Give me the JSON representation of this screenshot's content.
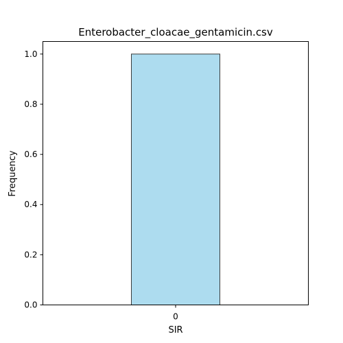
{
  "chart_data": {
    "type": "bar",
    "title": "Enterobacter_cloacae_gentamicin.csv",
    "xlabel": "SIR",
    "ylabel": "Frequency",
    "categories": [
      "0"
    ],
    "values": [
      1.0
    ],
    "xlim": [
      -0.75,
      0.75
    ],
    "ylim": [
      0,
      1.05
    ],
    "yticks": [
      0.0,
      0.2,
      0.4,
      0.6,
      0.8,
      1.0
    ],
    "ytick_labels": [
      "0.0",
      "0.2",
      "0.4",
      "0.6",
      "0.8",
      "1.0"
    ],
    "bar_color": "#ADDCEF",
    "bar_edge_color": "#3a3a3a",
    "grid": false,
    "legend": "none"
  }
}
